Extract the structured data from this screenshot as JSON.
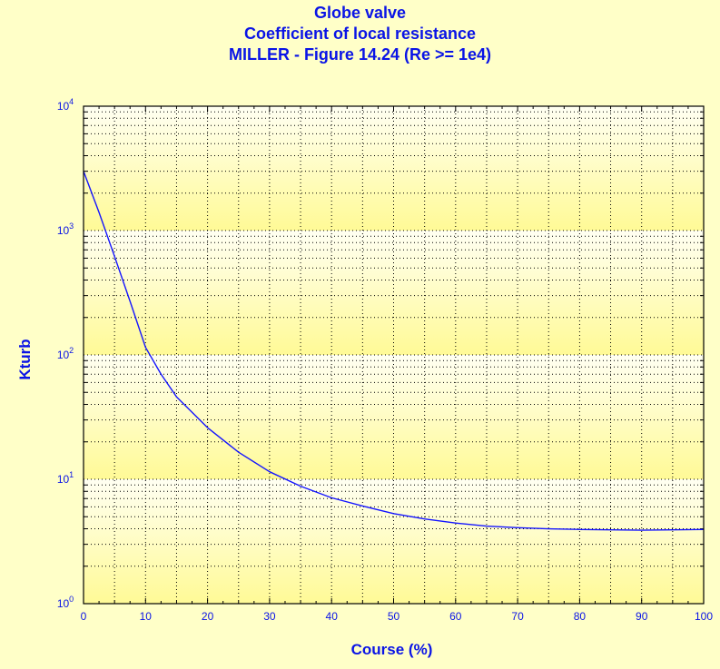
{
  "chart_data": {
    "type": "line",
    "title_lines": [
      "Globe valve",
      "Coefficient of local resistance",
      "MILLER - Figure 14.24 (Re >= 1e4)"
    ],
    "xlabel": "Course (%)",
    "ylabel": "Kturb",
    "xlim": [
      0,
      100
    ],
    "ylim": [
      1,
      10000
    ],
    "yscale": "log",
    "x_ticks": [
      0,
      10,
      20,
      30,
      40,
      50,
      60,
      70,
      80,
      90,
      100
    ],
    "y_tick_labels": [
      {
        "base": "10",
        "exp": "0"
      },
      {
        "base": "10",
        "exp": "1"
      },
      {
        "base": "10",
        "exp": "2"
      },
      {
        "base": "10",
        "exp": "3"
      },
      {
        "base": "10",
        "exp": "4"
      }
    ],
    "grid": true,
    "legend": "none",
    "series": [
      {
        "color": "#1414ff",
        "x": [
          0,
          2.5,
          5,
          7.5,
          10,
          12.5,
          15,
          20,
          25,
          30,
          35,
          40,
          45,
          50,
          55,
          60,
          65,
          70,
          75,
          80,
          85,
          90,
          95,
          100
        ],
        "y": [
          3000,
          1400,
          620,
          270,
          115,
          70,
          46,
          26,
          16.5,
          11.5,
          8.8,
          7.1,
          6.1,
          5.3,
          4.8,
          4.45,
          4.2,
          4.08,
          4.0,
          3.95,
          3.92,
          3.9,
          3.92,
          3.95
        ]
      }
    ]
  },
  "colors": {
    "background": "#ffffc8",
    "plot_top": "#fffff2",
    "plot_bottom": "#fffa96",
    "text": "#0a14e6",
    "grid": "#000000"
  }
}
